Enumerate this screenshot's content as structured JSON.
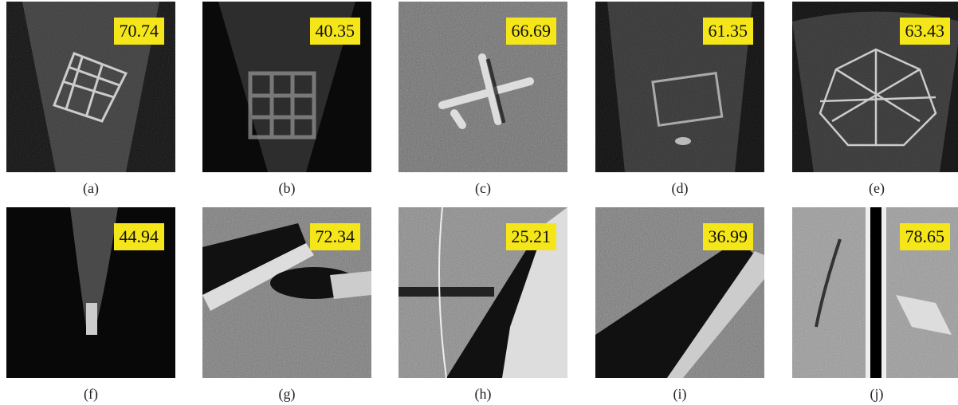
{
  "panels": [
    {
      "label": "(a)",
      "score": "70.74"
    },
    {
      "label": "(b)",
      "score": "40.35"
    },
    {
      "label": "(c)",
      "score": "66.69"
    },
    {
      "label": "(d)",
      "score": "61.35"
    },
    {
      "label": "(e)",
      "score": "63.43"
    },
    {
      "label": "(f)",
      "score": "44.94"
    },
    {
      "label": "(g)",
      "score": "72.34"
    },
    {
      "label": "(h)",
      "score": "25.21"
    },
    {
      "label": "(i)",
      "score": "36.99"
    },
    {
      "label": "(j)",
      "score": "78.65"
    }
  ]
}
